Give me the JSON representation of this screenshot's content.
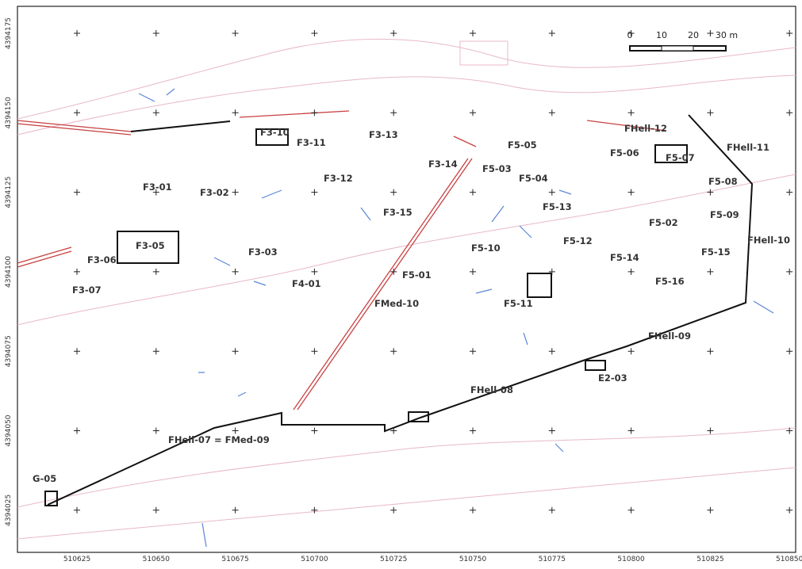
{
  "map": {
    "x_labels": [
      510625,
      510650,
      510675,
      510700,
      510725,
      510750,
      510775,
      510800,
      510825,
      510850
    ],
    "y_labels": [
      4394175,
      4394150,
      4394125,
      4394100,
      4394075,
      4394050,
      4394025
    ],
    "scale": [
      "0",
      "10",
      "20",
      "30 m"
    ],
    "features": [
      "F3-10",
      "F3-11",
      "F3-13",
      "F3-14",
      "F5-03",
      "F5-05",
      "FHell-12",
      "FHell-11",
      "F5-06",
      "F5-07",
      "F5-08",
      "F3-01",
      "F3-02",
      "F3-12",
      "F5-04",
      "F3-15",
      "F5-13",
      "F5-09",
      "F5-02",
      "F3-05",
      "F3-06",
      "F3-03",
      "F5-10",
      "F5-12",
      "F5-14",
      "F5-15",
      "FHell-10",
      "F5-01",
      "F4-01",
      "F5-16",
      "F3-07",
      "FMed-10",
      "F5-11",
      "FHell-09",
      "E2-03",
      "FHell-08",
      "FHell-07 = FMed-09",
      "G-05"
    ]
  }
}
